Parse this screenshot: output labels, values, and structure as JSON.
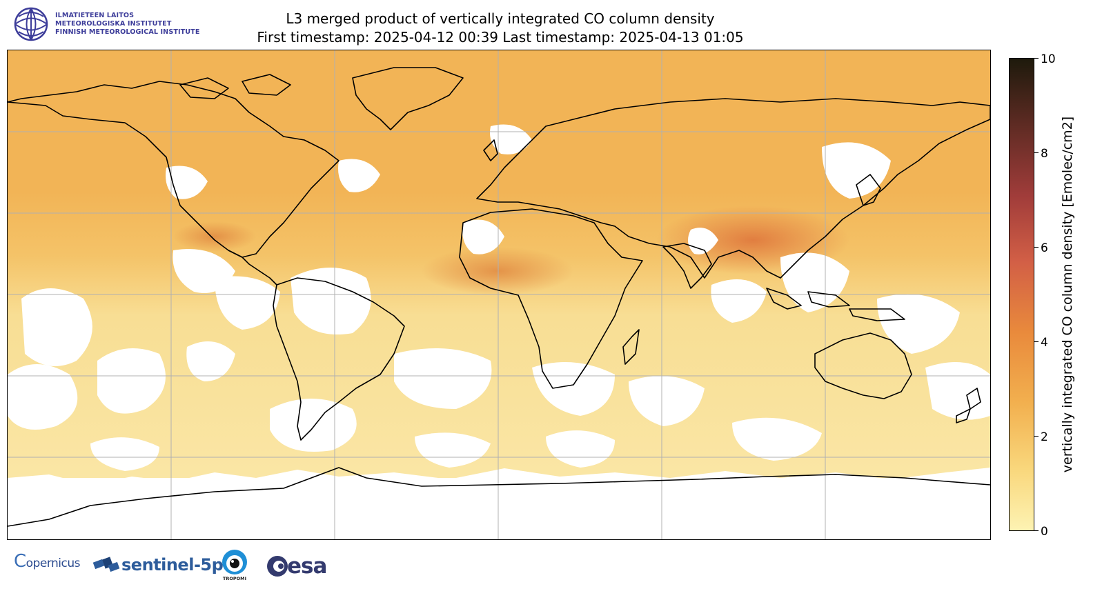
{
  "header": {
    "logo_lines": [
      "ILMATIETEEN LAITOS",
      "METEOROLOGISKA INSTITUTET",
      "FINNISH METEOROLOGICAL INSTITUTE"
    ],
    "title_line1": "L3 merged product of vertically integrated CO column density",
    "title_line2": "First timestamp: 2025-04-12 00:39   Last timestamp: 2025-04-13 01:05"
  },
  "colorbar": {
    "label": "vertically integrated CO column density [Emolec/cm2]",
    "min": 0,
    "max": 10,
    "ticks": [
      "0",
      "2",
      "4",
      "6",
      "8",
      "10"
    ],
    "colors": [
      "#fdf3b3",
      "#f9d77c",
      "#f2b04f",
      "#e98a3c",
      "#d25f46",
      "#a03c3a",
      "#5e2b23",
      "#1e1a0c"
    ]
  },
  "map": {
    "projection": "equirectangular",
    "gridlines": true,
    "field_colors": {
      "north": "#f2b456",
      "mid": "#f4c368",
      "south": "#f8de94",
      "no_data": "#ffffff",
      "coastline": "#000000"
    }
  },
  "footer": {
    "copernicus": "opernicus",
    "copernicus_c": "C",
    "sentinel": "sentinel-5p",
    "tropomi": "TROPOMI",
    "esa": "esa"
  }
}
